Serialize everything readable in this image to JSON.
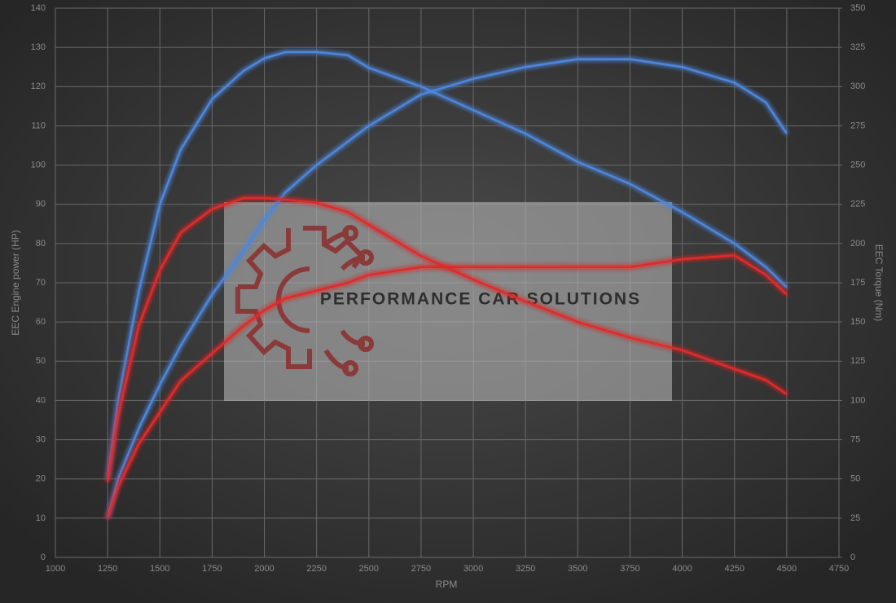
{
  "chart_data": {
    "type": "line",
    "xlabel": "RPM",
    "ylabel": "EEC Engine power (HP)",
    "y2label": "EEC Torque (Nm)",
    "watermark": "PERFORMANCE CAR SOLUTIONS",
    "grid": true,
    "xlim": [
      1000,
      4750
    ],
    "xticks": [
      1000,
      1250,
      1500,
      1750,
      2000,
      2250,
      2500,
      2750,
      3000,
      3250,
      3500,
      3750,
      4000,
      4250,
      4500,
      4750
    ],
    "ylim": [
      0,
      140
    ],
    "yticks": [
      0,
      10,
      20,
      30,
      40,
      50,
      60,
      70,
      80,
      90,
      100,
      110,
      120,
      130,
      140
    ],
    "y2lim": [
      0,
      350
    ],
    "y2ticks": [
      0,
      25,
      50,
      75,
      100,
      125,
      150,
      175,
      200,
      225,
      250,
      275,
      300,
      325,
      350
    ],
    "x": [
      1250,
      1300,
      1400,
      1500,
      1600,
      1750,
      1900,
      2000,
      2100,
      2250,
      2400,
      2500,
      2750,
      3000,
      3250,
      3500,
      3750,
      4000,
      4250,
      4400,
      4500
    ],
    "series": [
      {
        "color": "#4d86dc",
        "values": [
          10,
          20,
          33,
          44,
          54,
          67,
          78,
          86,
          93,
          100,
          106,
          110,
          118,
          122,
          125,
          127,
          127,
          125,
          121,
          116,
          108
        ]
      },
      {
        "color": "#4d86dc",
        "axis": "y2",
        "values": [
          50,
          100,
          170,
          225,
          260,
          292,
          310,
          318,
          322,
          322,
          320,
          312,
          300,
          285,
          270,
          252,
          238,
          220,
          200,
          185,
          172
        ]
      },
      {
        "color": "#e02a2a",
        "values": [
          10,
          18,
          29,
          37,
          45,
          52,
          59,
          63,
          66,
          68,
          70,
          72,
          74,
          74,
          74,
          74,
          74,
          76,
          77,
          72,
          67
        ]
      },
      {
        "color": "#e02a2a",
        "axis": "y2",
        "values": [
          48,
          90,
          148,
          183,
          207,
          222,
          229,
          229,
          228,
          226,
          220,
          212,
          192,
          177,
          163,
          150,
          140,
          132,
          120,
          113,
          104
        ]
      }
    ]
  }
}
